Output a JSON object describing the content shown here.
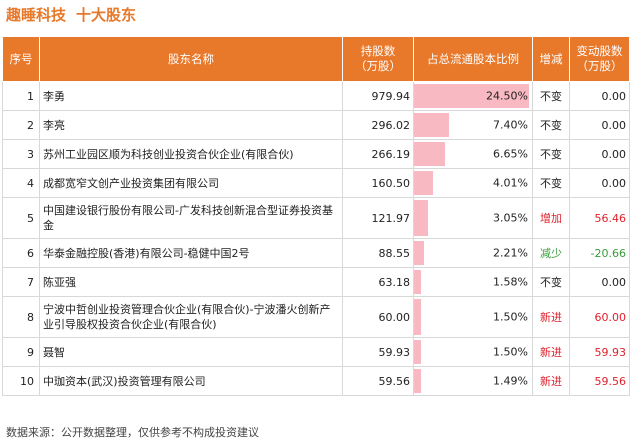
{
  "header": {
    "company": "趣睡科技",
    "subtitle": "十大股东"
  },
  "columns": [
    "序号",
    "股东名称",
    "持股数\n（万股）",
    "占总流通股本比例",
    "增减",
    "变动股数\n（万股）"
  ],
  "rows": [
    {
      "idx": "1",
      "name": "李勇",
      "shares": "979.94",
      "ratio": "24.50%",
      "ratio_value": 24.5,
      "change": "不变",
      "change_color": "#222222",
      "delta": "0.00",
      "delta_color": "#222222"
    },
    {
      "idx": "2",
      "name": "李亮",
      "shares": "296.02",
      "ratio": "7.40%",
      "ratio_value": 7.4,
      "change": "不变",
      "change_color": "#222222",
      "delta": "0.00",
      "delta_color": "#222222"
    },
    {
      "idx": "3",
      "name": "苏州工业园区顺为科技创业投资合伙企业(有限合伙)",
      "shares": "266.19",
      "ratio": "6.65%",
      "ratio_value": 6.65,
      "change": "不变",
      "change_color": "#222222",
      "delta": "0.00",
      "delta_color": "#222222"
    },
    {
      "idx": "4",
      "name": "成都宽窄文创产业投资集团有限公司",
      "shares": "160.50",
      "ratio": "4.01%",
      "ratio_value": 4.01,
      "change": "不变",
      "change_color": "#222222",
      "delta": "0.00",
      "delta_color": "#222222"
    },
    {
      "idx": "5",
      "name": "中国建设银行股份有限公司-广发科技创新混合型证券投资基金",
      "shares": "121.97",
      "ratio": "3.05%",
      "ratio_value": 3.05,
      "change": "增加",
      "change_color": "#e0212c",
      "delta": "56.46",
      "delta_color": "#e0212c"
    },
    {
      "idx": "6",
      "name": "华泰金融控股(香港)有限公司-稳健中国2号",
      "shares": "88.55",
      "ratio": "2.21%",
      "ratio_value": 2.21,
      "change": "减少",
      "change_color": "#3a9a3a",
      "delta": "-20.66",
      "delta_color": "#3a9a3a"
    },
    {
      "idx": "7",
      "name": "陈亚强",
      "shares": "63.18",
      "ratio": "1.58%",
      "ratio_value": 1.58,
      "change": "不变",
      "change_color": "#222222",
      "delta": "0.00",
      "delta_color": "#222222"
    },
    {
      "idx": "8",
      "name": "宁波中哲创业投资管理合伙企业(有限合伙)-宁波潘火创新产业引导股权投资合伙企业(有限合伙)",
      "shares": "60.00",
      "ratio": "1.50%",
      "ratio_value": 1.5,
      "change": "新进",
      "change_color": "#e0212c",
      "delta": "60.00",
      "delta_color": "#e0212c"
    },
    {
      "idx": "9",
      "name": "聂智",
      "shares": "59.93",
      "ratio": "1.50%",
      "ratio_value": 1.5,
      "change": "新进",
      "change_color": "#e0212c",
      "delta": "59.93",
      "delta_color": "#e0212c"
    },
    {
      "idx": "10",
      "name": "中珈资本(武汉)投资管理有限公司",
      "shares": "59.56",
      "ratio": "1.49%",
      "ratio_value": 1.49,
      "change": "新进",
      "change_color": "#e0212c",
      "delta": "59.56",
      "delta_color": "#e0212c"
    }
  ],
  "ratio_scale_max": 24.5,
  "colors": {
    "accent": "#e8782a",
    "bar": "#f8b9c2",
    "increase": "#e0212c",
    "decrease": "#3a9a3a"
  },
  "footer": {
    "source": "数据来源：公开数据整理，仅供参考不构成投资建议"
  }
}
